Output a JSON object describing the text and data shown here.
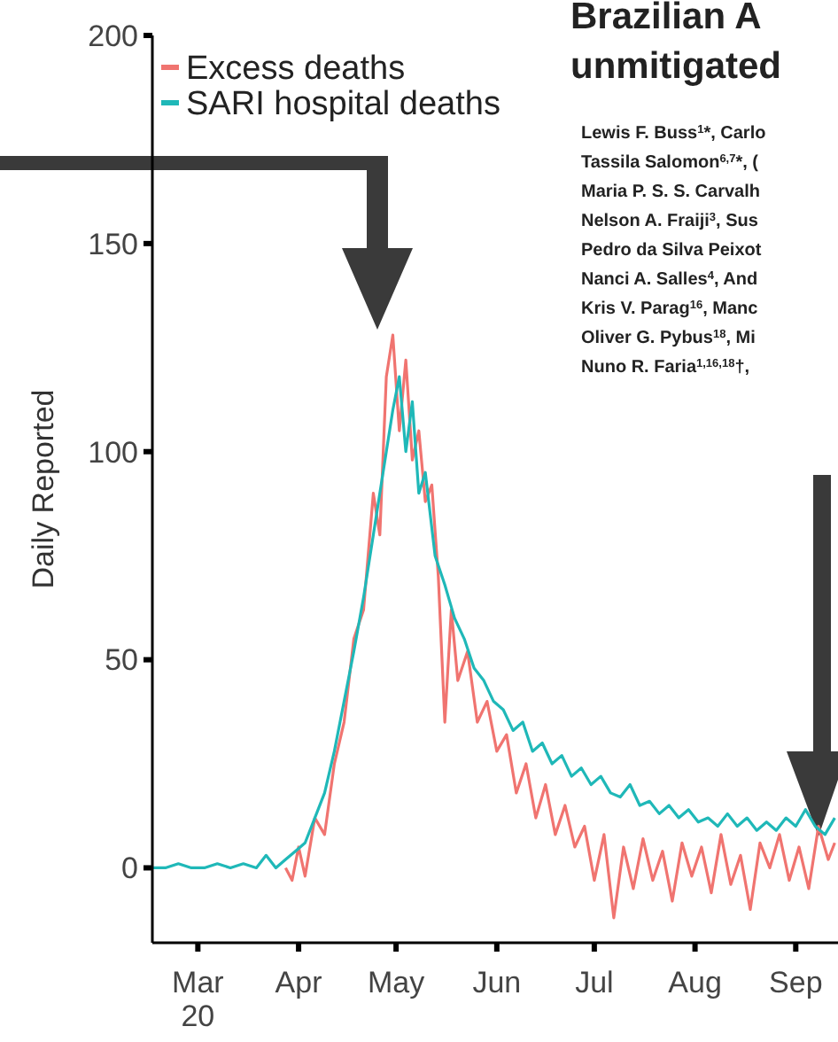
{
  "chart_data": {
    "type": "line",
    "ylabel": "Daily Reported",
    "xlim": [
      "2020-02-16",
      "2020-09-14"
    ],
    "ylim": [
      -18,
      200
    ],
    "yticks": [
      0,
      50,
      100,
      150,
      200
    ],
    "xticks": [
      {
        "value": "2020-03-01",
        "label": "Mar\n20"
      },
      {
        "value": "2020-04-01",
        "label": "Apr"
      },
      {
        "value": "2020-05-01",
        "label": "May"
      },
      {
        "value": "2020-06-01",
        "label": "Jun"
      },
      {
        "value": "2020-07-01",
        "label": "Jul"
      },
      {
        "value": "2020-08-01",
        "label": "Aug"
      },
      {
        "value": "2020-09-01",
        "label": "Sep"
      }
    ],
    "grid": false,
    "legend": "top left",
    "marker": "none",
    "line_style": "solid",
    "annotations": [
      "Brazilian A",
      "unmitigated",
      "Lewis F. Buss$^{1}$*, Carlo",
      "Tassila Salomon$^{6,7}$*, (",
      "Maria P. S. S. Carvalh",
      "Nelson A. Fraiji$^{3}$, Sus",
      "Pedro da Silva Peixot",
      "Nanci A. Salles$^{4}$, And",
      "Kris V. Parag$^{16}$, Manc",
      "Oliver G. Pybus$^{18}$, Mi",
      "Nuno R. Faria$^{1,16,18}$†,"
    ],
    "series": [
      {
        "name": "Excess deaths",
        "color": "#f07470",
        "x": [
          "2020-03-28",
          "2020-03-30",
          "2020-04-01",
          "2020-04-03",
          "2020-04-06",
          "2020-04-09",
          "2020-04-12",
          "2020-04-15",
          "2020-04-18",
          "2020-04-21",
          "2020-04-24",
          "2020-04-26",
          "2020-04-28",
          "2020-04-30",
          "2020-05-02",
          "2020-05-04",
          "2020-05-06",
          "2020-05-08",
          "2020-05-10",
          "2020-05-12",
          "2020-05-14",
          "2020-05-16",
          "2020-05-18",
          "2020-05-20",
          "2020-05-23",
          "2020-05-26",
          "2020-05-29",
          "2020-06-01",
          "2020-06-04",
          "2020-06-07",
          "2020-06-10",
          "2020-06-13",
          "2020-06-16",
          "2020-06-19",
          "2020-06-22",
          "2020-06-25",
          "2020-06-28",
          "2020-07-01",
          "2020-07-04",
          "2020-07-07",
          "2020-07-10",
          "2020-07-13",
          "2020-07-16",
          "2020-07-19",
          "2020-07-22",
          "2020-07-25",
          "2020-07-28",
          "2020-07-31",
          "2020-08-03",
          "2020-08-06",
          "2020-08-09",
          "2020-08-12",
          "2020-08-15",
          "2020-08-18",
          "2020-08-21",
          "2020-08-24",
          "2020-08-27",
          "2020-08-30",
          "2020-09-02",
          "2020-09-05",
          "2020-09-08",
          "2020-09-11",
          "2020-09-13"
        ],
        "values": [
          0,
          -3,
          5,
          -2,
          12,
          8,
          25,
          35,
          55,
          62,
          90,
          80,
          118,
          128,
          105,
          122,
          98,
          105,
          88,
          92,
          70,
          35,
          62,
          45,
          52,
          35,
          40,
          28,
          32,
          18,
          25,
          12,
          20,
          8,
          15,
          5,
          10,
          -3,
          8,
          -12,
          5,
          -5,
          7,
          -3,
          4,
          -8,
          6,
          -2,
          5,
          -6,
          8,
          -4,
          3,
          -10,
          6,
          0,
          8,
          -3,
          5,
          -5,
          10,
          2,
          6
        ]
      },
      {
        "name": "SARI hospital deaths",
        "color": "#1fb8b8",
        "x": [
          "2020-02-16",
          "2020-02-20",
          "2020-02-24",
          "2020-02-28",
          "2020-03-03",
          "2020-03-07",
          "2020-03-11",
          "2020-03-15",
          "2020-03-19",
          "2020-03-22",
          "2020-03-25",
          "2020-03-28",
          "2020-03-31",
          "2020-04-03",
          "2020-04-06",
          "2020-04-09",
          "2020-04-12",
          "2020-04-15",
          "2020-04-18",
          "2020-04-21",
          "2020-04-24",
          "2020-04-27",
          "2020-04-30",
          "2020-05-02",
          "2020-05-04",
          "2020-05-06",
          "2020-05-08",
          "2020-05-10",
          "2020-05-13",
          "2020-05-16",
          "2020-05-19",
          "2020-05-22",
          "2020-05-25",
          "2020-05-28",
          "2020-05-31",
          "2020-06-03",
          "2020-06-06",
          "2020-06-09",
          "2020-06-12",
          "2020-06-15",
          "2020-06-18",
          "2020-06-21",
          "2020-06-24",
          "2020-06-27",
          "2020-06-30",
          "2020-07-03",
          "2020-07-06",
          "2020-07-09",
          "2020-07-12",
          "2020-07-15",
          "2020-07-18",
          "2020-07-21",
          "2020-07-24",
          "2020-07-27",
          "2020-07-30",
          "2020-08-02",
          "2020-08-05",
          "2020-08-08",
          "2020-08-11",
          "2020-08-14",
          "2020-08-17",
          "2020-08-20",
          "2020-08-23",
          "2020-08-26",
          "2020-08-29",
          "2020-09-01",
          "2020-09-04",
          "2020-09-07",
          "2020-09-10",
          "2020-09-13"
        ],
        "values": [
          0,
          0,
          1,
          0,
          0,
          1,
          0,
          1,
          0,
          3,
          0,
          2,
          4,
          6,
          12,
          18,
          28,
          40,
          52,
          65,
          80,
          95,
          110,
          118,
          100,
          112,
          90,
          95,
          75,
          68,
          60,
          55,
          48,
          45,
          40,
          38,
          33,
          35,
          28,
          30,
          25,
          27,
          22,
          24,
          20,
          22,
          18,
          17,
          20,
          15,
          16,
          13,
          15,
          12,
          14,
          11,
          12,
          10,
          13,
          10,
          12,
          9,
          11,
          9,
          12,
          10,
          14,
          10,
          8,
          12
        ]
      }
    ]
  }
}
